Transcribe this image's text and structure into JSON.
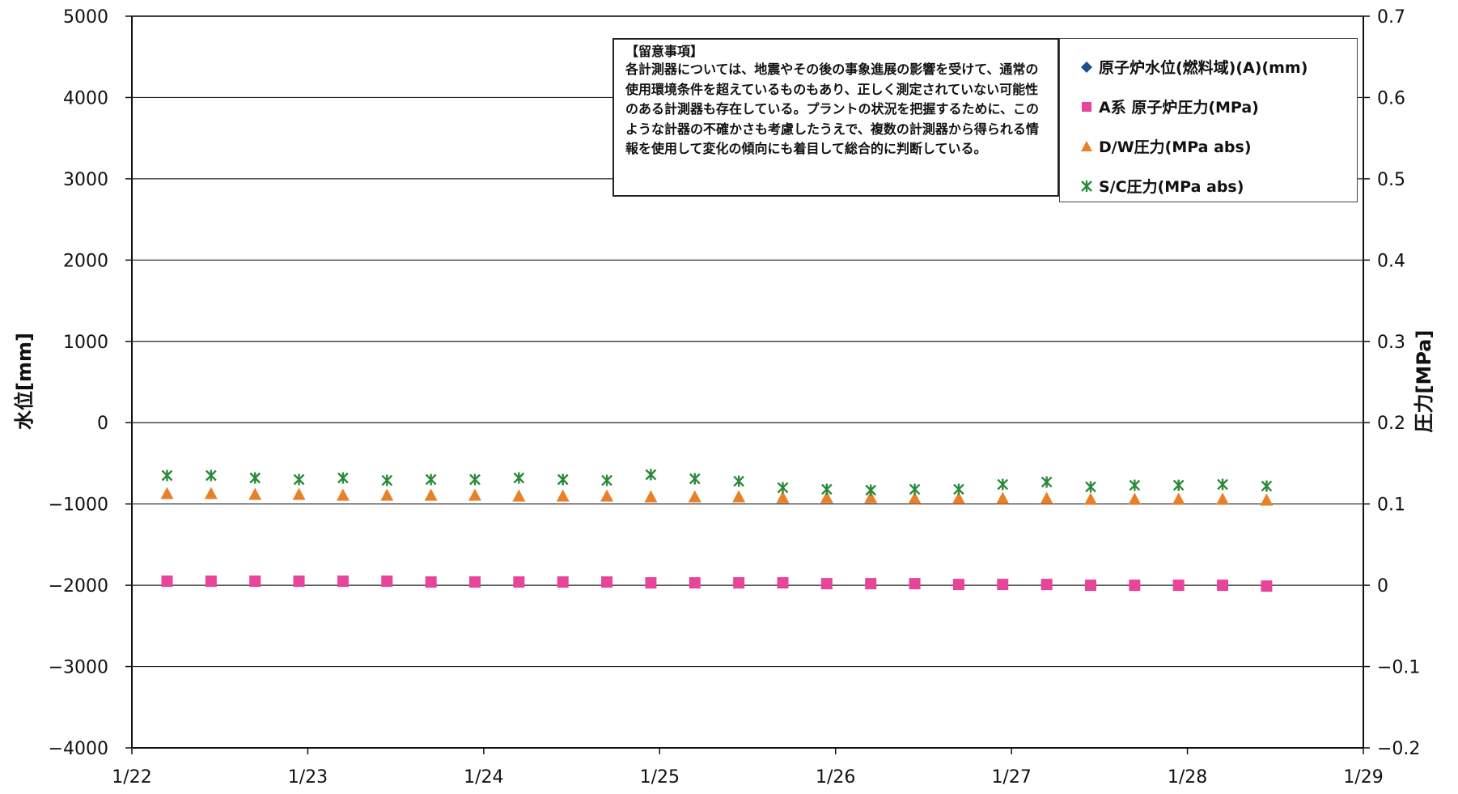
{
  "chart_data": {
    "type": "scatter",
    "x_dates": [
      "1/22",
      "1/23",
      "1/24",
      "1/25",
      "1/26",
      "1/27",
      "1/28",
      "1/29"
    ],
    "x_range": [
      "1/22",
      "1/29"
    ],
    "y_left": {
      "label": "水位[mm]",
      "ticks": [
        "5000",
        "4000",
        "3000",
        "2000",
        "1000",
        "0",
        "−1000",
        "−2000",
        "−3000",
        "−4000"
      ],
      "range": [
        -4000,
        5000
      ]
    },
    "y_right": {
      "label": "圧力[MPa]",
      "ticks": [
        "0.7",
        "0.6",
        "0.5",
        "0.4",
        "0.3",
        "0.2",
        "0.1",
        "0",
        "−0.1",
        "−0.2"
      ],
      "range": [
        -0.2,
        0.7
      ]
    },
    "grid": true,
    "legend_position": "top-right",
    "series": [
      {
        "name": "原子炉水位(燃料域)(A)(mm)",
        "axis": "left",
        "marker": "diamond",
        "color": "#1f4e8c",
        "x": [],
        "y": []
      },
      {
        "name": "A系 原子炉圧力(MPa)",
        "axis": "right",
        "marker": "square",
        "color": "#e8449a",
        "x": [
          22.2,
          22.45,
          22.7,
          22.95,
          23.2,
          23.45,
          23.7,
          23.95,
          24.2,
          24.45,
          24.7,
          24.95,
          25.2,
          25.45,
          25.7,
          25.95,
          26.2,
          26.45,
          26.7,
          26.95,
          27.2,
          27.45,
          27.7,
          27.95,
          28.2,
          28.45
        ],
        "y": [
          0.005,
          0.005,
          0.005,
          0.005,
          0.005,
          0.005,
          0.004,
          0.004,
          0.004,
          0.004,
          0.004,
          0.003,
          0.003,
          0.003,
          0.003,
          0.002,
          0.002,
          0.002,
          0.001,
          0.001,
          0.001,
          0.0,
          0.0,
          0.0,
          0.0,
          -0.001
        ]
      },
      {
        "name": "D/W圧力(MPa abs)",
        "axis": "right",
        "marker": "triangle",
        "color": "#e8802a",
        "x": [
          22.2,
          22.45,
          22.7,
          22.95,
          23.2,
          23.45,
          23.7,
          23.95,
          24.2,
          24.45,
          24.7,
          24.95,
          25.2,
          25.45,
          25.7,
          25.95,
          26.2,
          26.45,
          26.7,
          26.95,
          27.2,
          27.45,
          27.7,
          27.95,
          28.2,
          28.45
        ],
        "y": [
          0.112,
          0.112,
          0.111,
          0.111,
          0.11,
          0.11,
          0.11,
          0.11,
          0.109,
          0.109,
          0.109,
          0.108,
          0.108,
          0.108,
          0.107,
          0.107,
          0.107,
          0.106,
          0.106,
          0.106,
          0.106,
          0.105,
          0.105,
          0.105,
          0.105,
          0.104
        ]
      },
      {
        "name": "S/C圧力(MPa abs)",
        "axis": "right",
        "marker": "asterisk",
        "color": "#2a8a3a",
        "x": [
          22.2,
          22.45,
          22.7,
          22.95,
          23.2,
          23.45,
          23.7,
          23.95,
          24.2,
          24.45,
          24.7,
          24.95,
          25.2,
          25.45,
          25.7,
          25.95,
          26.2,
          26.45,
          26.7,
          26.95,
          27.2,
          27.45,
          27.7,
          27.95,
          28.2,
          28.45
        ],
        "y": [
          0.135,
          0.135,
          0.132,
          0.13,
          0.132,
          0.129,
          0.13,
          0.13,
          0.132,
          0.13,
          0.129,
          0.136,
          0.131,
          0.128,
          0.12,
          0.118,
          0.117,
          0.118,
          0.118,
          0.124,
          0.127,
          0.121,
          0.123,
          0.123,
          0.124,
          0.122
        ]
      }
    ]
  },
  "note": {
    "title": "【留意事項】",
    "body": "各計測器については、地震やその後の事象進展の影響を受けて、通常の使用環境条件を超えているものもあり、正しく測定されていない可能性のある計測器も存在している。プラントの状況を把握するために、このような計器の不確かさも考慮したうえで、複数の計測器から得られる情報を使用して変化の傾向にも着目して総合的に判断している。"
  },
  "legend": {
    "items": [
      {
        "label": "原子炉水位(燃料域)(A)(mm)",
        "marker": "diamond",
        "color": "#1f4e8c"
      },
      {
        "label": "A系 原子炉圧力(MPa)",
        "marker": "square",
        "color": "#e8449a"
      },
      {
        "label": "D/W圧力(MPa abs)",
        "marker": "triangle",
        "color": "#e8802a"
      },
      {
        "label": "S/C圧力(MPa abs)",
        "marker": "asterisk",
        "color": "#2a8a3a"
      }
    ]
  }
}
